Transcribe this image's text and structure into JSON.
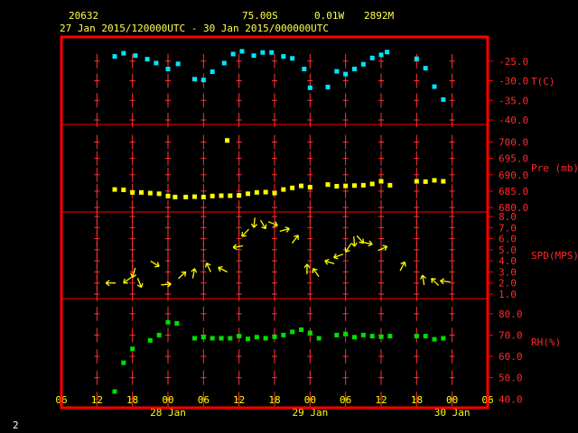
{
  "header": {
    "station_id": "20632",
    "latitude": "75.00S",
    "longitude": "0.01W",
    "elevation": "2892M",
    "period": "27 Jan 2015/120000UTC - 30 Jan 2015/000000UTC"
  },
  "page_number": "2",
  "colors": {
    "background": "#000000",
    "frame": "#ff0000",
    "grid": "#ff3333",
    "text": "#ffff00",
    "temperature": "#00e5ff",
    "pressure": "#ffff00",
    "wind": "#ffff00",
    "humidity": "#00e000"
  },
  "chart_data": {
    "type": "scatter",
    "x_axis": {
      "unit": "hours since 27 Jan 2015 06 UTC",
      "range": [
        0,
        72
      ],
      "tick_labels": [
        "06",
        "12",
        "18",
        "00",
        "06",
        "12",
        "18",
        "00",
        "06",
        "12",
        "18",
        "00",
        "06"
      ],
      "tick_hours": [
        0,
        6,
        12,
        18,
        24,
        30,
        36,
        42,
        48,
        54,
        60,
        66,
        72
      ],
      "day_labels": [
        {
          "label": "28 Jan",
          "hour": 18
        },
        {
          "label": "29 Jan",
          "hour": 42
        },
        {
          "label": "30 Jan",
          "hour": 66
        }
      ]
    },
    "panels": [
      {
        "id": "temperature",
        "label": "T(C)",
        "range": [
          -40,
          -20
        ],
        "ticks": [
          "-25.0",
          "-30.0",
          "-35.0",
          "-40.0"
        ],
        "tick_values": [
          -25,
          -30,
          -35,
          -40
        ],
        "points": [
          [
            9,
            -23.8
          ],
          [
            10.5,
            -23
          ],
          [
            12.5,
            -23.6
          ],
          [
            14.5,
            -24.5
          ],
          [
            16,
            -25.5
          ],
          [
            18,
            -27
          ],
          [
            19.7,
            -25.7
          ],
          [
            22.5,
            -29.6
          ],
          [
            24,
            -29.8
          ],
          [
            25.5,
            -27.7
          ],
          [
            27.5,
            -25.5
          ],
          [
            29,
            -23.2
          ],
          [
            30.5,
            -22.5
          ],
          [
            32.5,
            -23.6
          ],
          [
            34,
            -22.8
          ],
          [
            35.5,
            -22.8
          ],
          [
            37.5,
            -23.8
          ],
          [
            39,
            -24.3
          ],
          [
            41,
            -27
          ],
          [
            42,
            -31.8
          ],
          [
            45,
            -31.6
          ],
          [
            46.5,
            -27.6
          ],
          [
            48,
            -28.3
          ],
          [
            49.5,
            -27
          ],
          [
            51,
            -25.8
          ],
          [
            52.5,
            -24.2
          ],
          [
            54,
            -23.4
          ],
          [
            55,
            -22.7
          ],
          [
            60,
            -24.4
          ],
          [
            61.5,
            -26.8
          ],
          [
            63,
            -31.5
          ],
          [
            64.5,
            -34.8
          ]
        ]
      },
      {
        "id": "pressure",
        "label": "Pre (mb)",
        "range": [
          680,
          704
        ],
        "ticks": [
          "700.0",
          "695.0",
          "690.0",
          "685.0",
          "680.0"
        ],
        "tick_values": [
          700,
          695,
          690,
          685,
          680
        ],
        "points": [
          [
            9,
            685.5
          ],
          [
            10.5,
            685.4
          ],
          [
            12,
            684.6
          ],
          [
            13.5,
            684.6
          ],
          [
            15,
            684.4
          ],
          [
            16.5,
            684.2
          ],
          [
            18,
            683.5
          ],
          [
            19.2,
            683.2
          ],
          [
            21,
            683.2
          ],
          [
            22.5,
            683.3
          ],
          [
            24,
            683.2
          ],
          [
            25.5,
            683.5
          ],
          [
            27,
            683.6
          ],
          [
            28.5,
            683.6
          ],
          [
            30,
            683.7
          ],
          [
            31.5,
            684.2
          ],
          [
            33,
            684.6
          ],
          [
            34.5,
            684.7
          ],
          [
            36,
            684.4
          ],
          [
            37.5,
            685.5
          ],
          [
            39,
            686
          ],
          [
            40.5,
            686.6
          ],
          [
            42,
            686.2
          ],
          [
            45,
            687
          ],
          [
            46.5,
            686.5
          ],
          [
            48,
            686.6
          ],
          [
            49.5,
            686.7
          ],
          [
            51,
            686.8
          ],
          [
            52.5,
            687.2
          ],
          [
            54,
            688
          ],
          [
            55.5,
            686.8
          ],
          [
            60,
            688
          ],
          [
            61.5,
            687.9
          ],
          [
            63,
            688.3
          ],
          [
            64.5,
            688
          ],
          [
            28,
            700.5
          ]
        ]
      },
      {
        "id": "wind",
        "label": "SPD(MPS)",
        "range": [
          1,
          8
        ],
        "ticks": [
          "8.0",
          "7.0",
          "6.0",
          "5.0",
          "4.0",
          "3.0",
          "2.0",
          "1.0"
        ],
        "tick_values": [
          8,
          7,
          6,
          5,
          4,
          3,
          2,
          1
        ],
        "points": [
          [
            7.5,
            2
          ],
          [
            10.5,
            2
          ],
          [
            12,
            2.5
          ],
          [
            13.5,
            1.6
          ],
          [
            16.5,
            3.5
          ],
          [
            18.5,
            1.9
          ],
          [
            21,
            3
          ],
          [
            22.5,
            3.3
          ],
          [
            24.5,
            3.8
          ],
          [
            26.5,
            3.4
          ],
          [
            29,
            5.2
          ],
          [
            30.5,
            6.2
          ],
          [
            32.5,
            7
          ],
          [
            34.5,
            6.9
          ],
          [
            36.5,
            7.2
          ],
          [
            38.5,
            6.9
          ],
          [
            40,
            6.3
          ],
          [
            41.5,
            3.7
          ],
          [
            42.5,
            3.3
          ],
          [
            44.5,
            4
          ],
          [
            46,
            4.3
          ],
          [
            48,
            4.8
          ],
          [
            49.5,
            5.3
          ],
          [
            51,
            5.6
          ],
          [
            52.5,
            5.5
          ],
          [
            55,
            5.3
          ],
          [
            58,
            3.9
          ],
          [
            61,
            2.7
          ],
          [
            62.5,
            2.4
          ],
          [
            64,
            2.2
          ]
        ]
      },
      {
        "id": "humidity",
        "label": "RH(%)",
        "range": [
          38,
          85
        ],
        "ticks": [
          "80.0",
          "70.0",
          "60.0",
          "50.0",
          "40.0"
        ],
        "tick_values": [
          80,
          70,
          60,
          50,
          40
        ],
        "points": [
          [
            9,
            43.5
          ],
          [
            10.5,
            57
          ],
          [
            12,
            63.5
          ],
          [
            15,
            67.5
          ],
          [
            16.5,
            70
          ],
          [
            18,
            76
          ],
          [
            19.5,
            75.5
          ],
          [
            22.5,
            68.5
          ],
          [
            24,
            69
          ],
          [
            25.5,
            68.5
          ],
          [
            27,
            68.5
          ],
          [
            28.5,
            68.5
          ],
          [
            30,
            69.5
          ],
          [
            31.5,
            68.2
          ],
          [
            33,
            69
          ],
          [
            34.5,
            68.5
          ],
          [
            36,
            69.2
          ],
          [
            37.5,
            70
          ],
          [
            39,
            71.5
          ],
          [
            40.5,
            72.5
          ],
          [
            42,
            71
          ],
          [
            43.5,
            68.5
          ],
          [
            46.5,
            70
          ],
          [
            48,
            70.5
          ],
          [
            49.5,
            69
          ],
          [
            51,
            70
          ],
          [
            52.5,
            69.5
          ],
          [
            54,
            69.2
          ],
          [
            55.5,
            69.5
          ],
          [
            60,
            69.5
          ],
          [
            61.5,
            69.5
          ],
          [
            63,
            68
          ],
          [
            64.5,
            68.5
          ]
        ]
      }
    ]
  }
}
